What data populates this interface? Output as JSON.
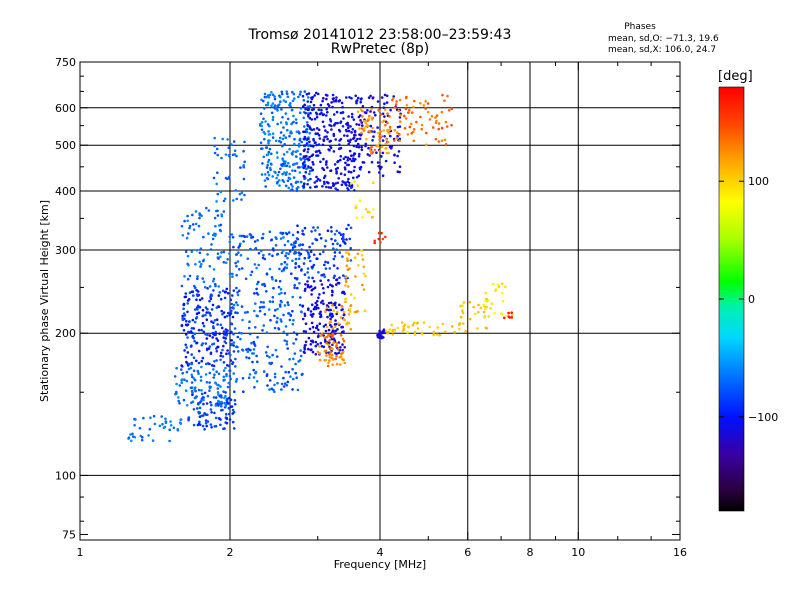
{
  "chart_data": {
    "type": "scatter",
    "title": "Tromsø 20141012 23:58:00–23:59:43",
    "subtitle": "RwPretec (8p)",
    "xlabel": "Frequency [MHz]",
    "ylabel": "Stationary phase Virtual Height [km]",
    "x_scale": "log",
    "y_scale": "log",
    "xlim": [
      1,
      16
    ],
    "ylim": [
      73,
      750
    ],
    "x_ticks": [
      1,
      2,
      4,
      6,
      8,
      10,
      16
    ],
    "x_tick_labels": [
      "1",
      "2",
      "4",
      "6",
      "8",
      "10",
      "16"
    ],
    "x_minor_ticks": [
      3,
      5,
      7,
      9,
      12,
      14
    ],
    "y_ticks": [
      75,
      100,
      200,
      300,
      400,
      500,
      600,
      750
    ],
    "y_tick_labels": [
      "75",
      "100",
      "200",
      "300",
      "400",
      "500",
      "600",
      "750"
    ],
    "y_minor_ticks": [
      80,
      90,
      150,
      250,
      350,
      450,
      550,
      650,
      700
    ],
    "grid_x": [
      2,
      4,
      6,
      8,
      10
    ],
    "grid_y": [
      100,
      200,
      300,
      400,
      500,
      600
    ],
    "grid": true,
    "colorbar": {
      "label": "[deg]",
      "range": [
        -180,
        180
      ],
      "ticks": [
        100,
        0,
        -100
      ],
      "tick_labels": [
        "100",
        "0",
        "−100"
      ]
    },
    "stats": {
      "header": "Phases",
      "line1": "mean, sd,O: −71.3, 19.6",
      "line2": "mean, sd,X: 106.0, 24.7"
    },
    "clusters": [
      {
        "f": [
          1.65,
          2.05
        ],
        "h": [
          125,
          150
        ],
        "phase": [
          -100,
          -75
        ],
        "n": 90
      },
      {
        "f": [
          1.25,
          1.6
        ],
        "h": [
          118,
          135
        ],
        "phase": [
          -75,
          -55
        ],
        "n": 40
      },
      {
        "f": [
          1.55,
          2.0
        ],
        "h": [
          140,
          170
        ],
        "phase": [
          -80,
          -55
        ],
        "n": 100
      },
      {
        "f": [
          1.6,
          2.05
        ],
        "h": [
          170,
          250
        ],
        "phase": [
          -110,
          -70
        ],
        "n": 220
      },
      {
        "f": [
          1.6,
          2.0
        ],
        "h": [
          250,
          370
        ],
        "phase": [
          -80,
          -55
        ],
        "n": 90
      },
      {
        "f": [
          1.85,
          2.15
        ],
        "h": [
          380,
          520
        ],
        "phase": [
          -80,
          -55
        ],
        "n": 45
      },
      {
        "f": [
          2.0,
          2.8
        ],
        "h": [
          150,
          330
        ],
        "phase": [
          -90,
          -60
        ],
        "n": 320
      },
      {
        "f": [
          2.3,
          2.9
        ],
        "h": [
          400,
          650
        ],
        "phase": [
          -80,
          -55
        ],
        "n": 260
      },
      {
        "f": [
          2.8,
          3.4
        ],
        "h": [
          180,
          260
        ],
        "phase": [
          -120,
          -100
        ],
        "n": 180
      },
      {
        "f": [
          2.7,
          3.5
        ],
        "h": [
          260,
          340
        ],
        "phase": [
          -100,
          -70
        ],
        "n": 110
      },
      {
        "f": [
          2.8,
          3.6
        ],
        "h": [
          400,
          650
        ],
        "phase": [
          -120,
          -95
        ],
        "n": 300
      },
      {
        "f": [
          3.6,
          4.4
        ],
        "h": [
          430,
          640
        ],
        "phase": [
          -120,
          -100
        ],
        "n": 120
      },
      {
        "f": [
          3.0,
          3.4
        ],
        "h": [
          170,
          200
        ],
        "phase": [
          115,
          140
        ],
        "n": 60
      },
      {
        "f": [
          3.1,
          3.5
        ],
        "h": [
          200,
          230
        ],
        "phase": [
          105,
          125
        ],
        "n": 25
      },
      {
        "f": [
          3.4,
          3.75
        ],
        "h": [
          220,
          300
        ],
        "phase": [
          95,
          130
        ],
        "n": 40
      },
      {
        "f": [
          3.5,
          3.9
        ],
        "h": [
          350,
          420
        ],
        "phase": [
          70,
          110
        ],
        "n": 15
      },
      {
        "f": [
          3.6,
          4.2
        ],
        "h": [
          480,
          600
        ],
        "phase": [
          110,
          140
        ],
        "n": 70
      },
      {
        "f": [
          4.2,
          5.6
        ],
        "h": [
          500,
          640
        ],
        "phase": [
          120,
          150
        ],
        "n": 70
      },
      {
        "f": [
          3.95,
          4.1
        ],
        "h": [
          195,
          205
        ],
        "phase": [
          -120,
          -110
        ],
        "n": 25
      },
      {
        "f": [
          4.1,
          5.9
        ],
        "h": [
          198,
          212
        ],
        "phase": [
          95,
          115
        ],
        "n": 45
      },
      {
        "f": [
          5.8,
          6.6
        ],
        "h": [
          200,
          235
        ],
        "phase": [
          95,
          115
        ],
        "n": 20
      },
      {
        "f": [
          6.3,
          7.4
        ],
        "h": [
          215,
          255
        ],
        "phase": [
          80,
          110
        ],
        "n": 30
      },
      {
        "f": [
          3.9,
          4.1
        ],
        "h": [
          310,
          330
        ],
        "phase": [
          150,
          170
        ],
        "n": 8
      },
      {
        "f": [
          7.1,
          7.5
        ],
        "h": [
          215,
          222
        ],
        "phase": [
          165,
          175
        ],
        "n": 6
      }
    ]
  }
}
